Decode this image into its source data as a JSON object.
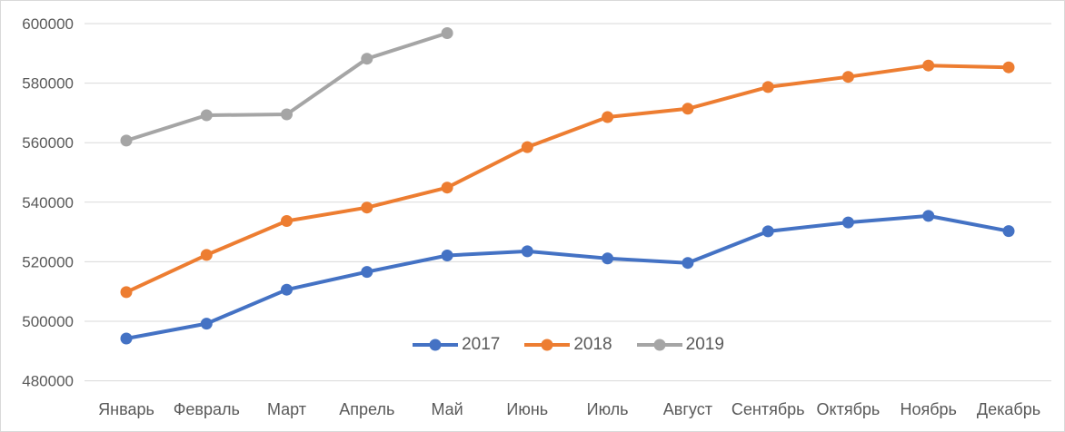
{
  "chart_data": {
    "type": "line",
    "title": "",
    "categories": [
      "Январь",
      "Февраль",
      "Март",
      "Апрель",
      "Май",
      "Июнь",
      "Июль",
      "Август",
      "Сентябрь",
      "Октябрь",
      "Ноябрь",
      "Декабрь"
    ],
    "series": [
      {
        "name": "2017",
        "color": "#4472C4",
        "values": [
          494200,
          499200,
          510600,
          516600,
          522100,
          523500,
          521100,
          519600,
          530200,
          533200,
          535400,
          530300
        ]
      },
      {
        "name": "2018",
        "color": "#ED7D31",
        "values": [
          509800,
          522300,
          533700,
          538200,
          544900,
          558500,
          568600,
          571400,
          578700,
          582100,
          585900,
          585300
        ]
      },
      {
        "name": "2019",
        "color": "#A5A5A5",
        "values": [
          560700,
          569200,
          569500,
          588200,
          596800
        ]
      }
    ],
    "ylim": [
      480000,
      600000
    ],
    "ytick_step": 20000,
    "yticks": [
      480000,
      500000,
      520000,
      540000,
      560000,
      580000,
      600000
    ],
    "ytick_labels": [
      "480000",
      "500000",
      "520000",
      "540000",
      "560000",
      "580000",
      "600000"
    ],
    "xlabel": "",
    "ylabel": "",
    "grid": true,
    "legend": {
      "position": "bottom-center-inside",
      "entries": [
        "2017",
        "2018",
        "2019"
      ]
    }
  },
  "colors": {
    "background": "#FFFFFF",
    "border": "#D9D9D9",
    "gridline": "#D9D9D9",
    "axis_text": "#595959",
    "legend_text": "#595959",
    "series_2017": "#4472C4",
    "series_2018": "#ED7D31",
    "series_2019": "#A5A5A5"
  }
}
